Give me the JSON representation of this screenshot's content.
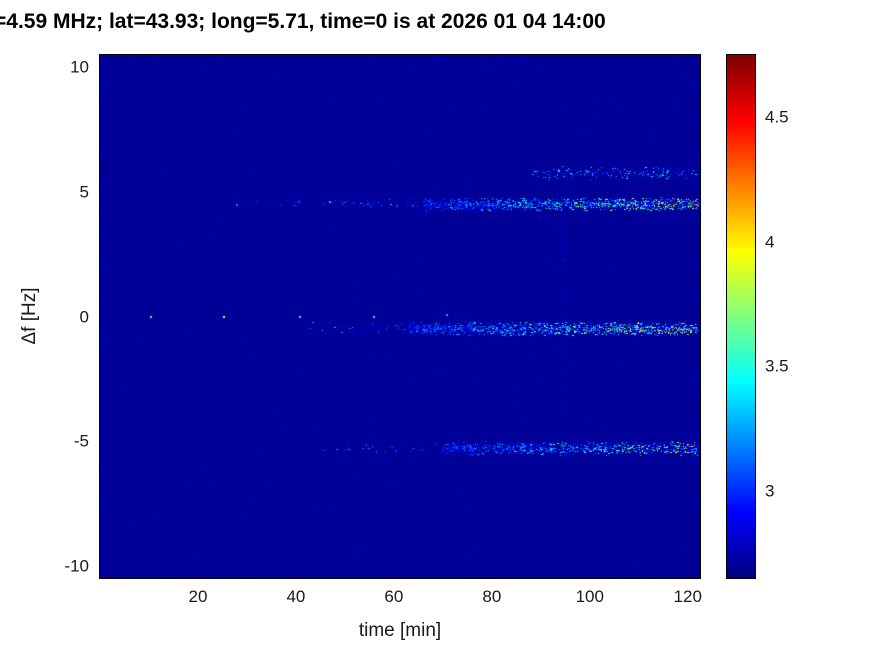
{
  "figure": {
    "background_color": "#ffffff",
    "axis_color": "#000000"
  },
  "chart_data": {
    "type": "heatmap",
    "title": "=4.59 MHz;  lat=43.93; long=5.71, time=0 is at 2026 01 04 14:00",
    "xlabel": "time [min]",
    "ylabel": "Δf [Hz]",
    "xlim": [
      0,
      122.5
    ],
    "ylim": [
      -10.5,
      10.5
    ],
    "x_ticks": [
      20,
      40,
      60,
      80,
      100,
      120
    ],
    "y_ticks": [
      10,
      5,
      0,
      -5,
      -10
    ],
    "colormap": "jet",
    "value_range": [
      2.65,
      4.75
    ],
    "colorbar_ticks": [
      4.5,
      4,
      3.5,
      3
    ],
    "background_value": 2.7,
    "noise": {
      "count": 2500,
      "v_min": 2.68,
      "v_max": 2.95
    },
    "bands": [
      {
        "y": 4.55,
        "y_spread": 0.22,
        "x_start": 26,
        "x_end": 66,
        "per_min": 3,
        "v_min": 2.8,
        "v_max": 3.5,
        "bias": 2.5,
        "ramp": true
      },
      {
        "y": 4.5,
        "y_spread": 0.28,
        "x_start": 66,
        "x_end": 122,
        "per_min": 30,
        "v_min": 2.85,
        "v_max": 4.35,
        "bias": 2.2,
        "ramp": true
      },
      {
        "y": 5.75,
        "y_spread": 0.3,
        "x_start": 88,
        "x_end": 122,
        "per_min": 8,
        "v_min": 2.8,
        "v_max": 3.55,
        "bias": 2.0,
        "ramp": false
      },
      {
        "y": -0.45,
        "y_spread": 0.25,
        "x_start": 42,
        "x_end": 63,
        "per_min": 3,
        "v_min": 2.8,
        "v_max": 3.4,
        "bias": 2.5,
        "ramp": false
      },
      {
        "y": -0.5,
        "y_spread": 0.3,
        "x_start": 63,
        "x_end": 122,
        "per_min": 30,
        "v_min": 2.85,
        "v_max": 4.4,
        "bias": 2.2,
        "ramp": true
      },
      {
        "y": -5.3,
        "y_spread": 0.25,
        "x_start": 44,
        "x_end": 70,
        "per_min": 2.5,
        "v_min": 2.8,
        "v_max": 3.3,
        "bias": 2.5,
        "ramp": false
      },
      {
        "y": -5.3,
        "y_spread": 0.3,
        "x_start": 70,
        "x_end": 122,
        "per_min": 22,
        "v_min": 2.85,
        "v_max": 4.2,
        "bias": 2.3,
        "ramp": true
      },
      {
        "y": 0,
        "y_spread": 10.4,
        "x_start": 94.3,
        "x_end": 95.3,
        "per_min": 150,
        "v_min": 2.72,
        "v_max": 2.95,
        "bias": 1.5,
        "ramp": false
      }
    ],
    "dots": [
      {
        "x": 10.5,
        "y": 0,
        "v": 3.6
      },
      {
        "x": 25.5,
        "y": 0,
        "v": 3.9
      },
      {
        "x": 41,
        "y": 0,
        "v": 3.5
      },
      {
        "x": 56,
        "y": 0,
        "v": 3.4
      },
      {
        "x": 71,
        "y": 0.1,
        "v": 3.3
      },
      {
        "x": 28,
        "y": 4.5,
        "v": 3.2
      },
      {
        "x": 47,
        "y": 4.6,
        "v": 3.3
      }
    ]
  }
}
